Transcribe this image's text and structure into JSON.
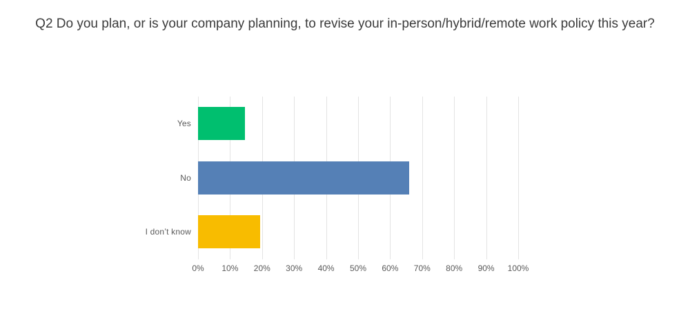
{
  "page": {
    "background": "#ffffff"
  },
  "chart_data": {
    "type": "bar",
    "orientation": "horizontal",
    "title": "Q2 Do you plan, or is your company planning, to revise your in-person/hybrid/remote work policy this year?",
    "categories": [
      "Yes",
      "No",
      "I don’t know"
    ],
    "values": [
      14.6,
      66.0,
      19.5
    ],
    "value_suffix": "%",
    "colors": [
      "#00BF6F",
      "#5580B6",
      "#F8BC00"
    ],
    "xlabel": "",
    "ylabel": "",
    "xlim": [
      0,
      100
    ],
    "x_ticks": [
      0,
      10,
      20,
      30,
      40,
      50,
      60,
      70,
      80,
      90,
      100
    ],
    "x_tick_labels": [
      "0%",
      "10%",
      "20%",
      "30%",
      "40%",
      "50%",
      "60%",
      "70%",
      "80%",
      "90%",
      "100%"
    ],
    "grid": "vertical-only",
    "gridline_color": "#e3e3e3",
    "legend": "none",
    "title_color": "#3b3b3b",
    "axis_text_color": "#595959"
  }
}
